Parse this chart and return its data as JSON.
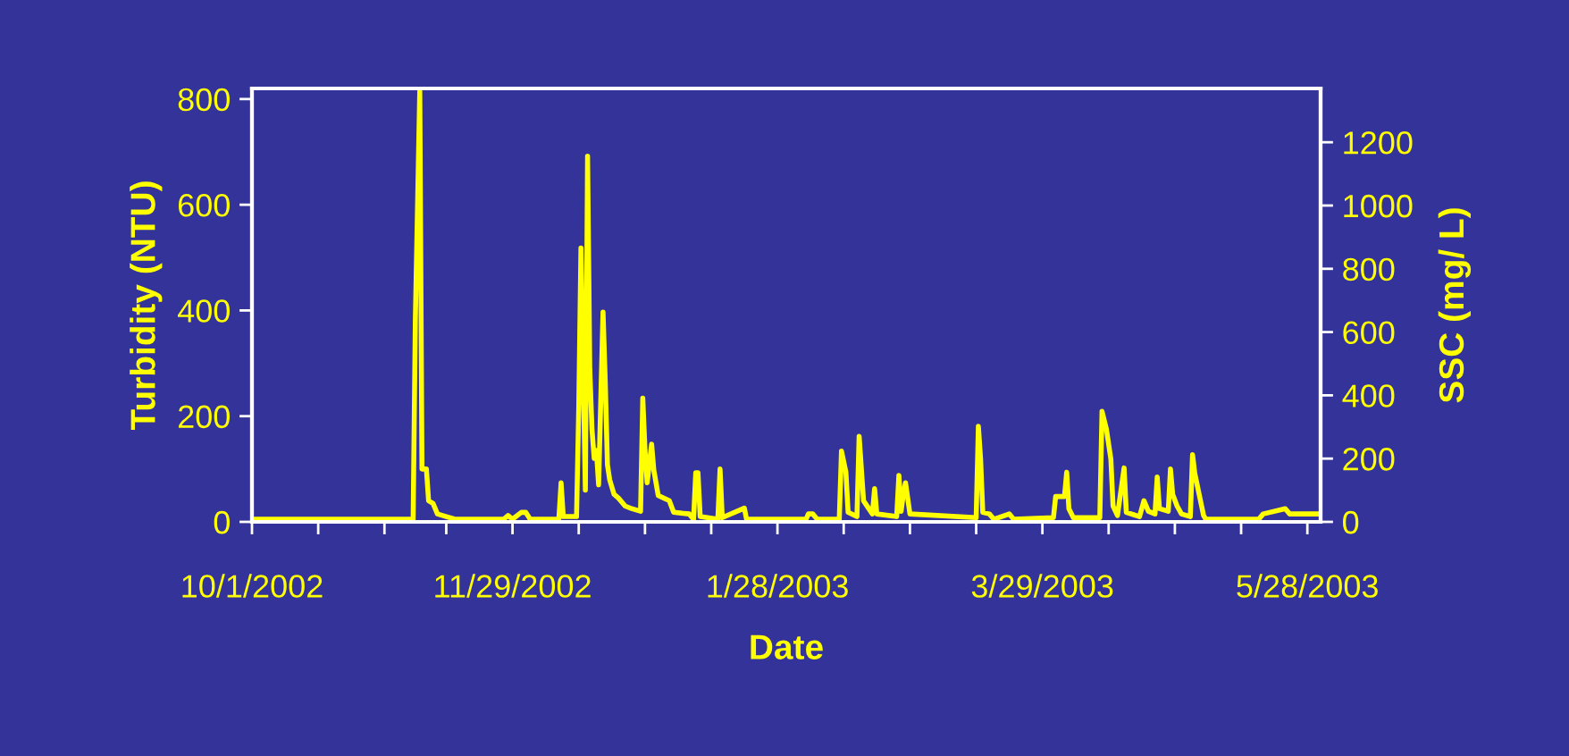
{
  "chart_data": {
    "type": "line",
    "xlabel": "Date",
    "ylabel": "Turbidity (NTU)",
    "y2label": "SSC (mg/ L)",
    "x": [
      "2002-10-01",
      "2002-11-06T12:00",
      "2002-11-07",
      "2002-11-08",
      "2002-11-08T12:00",
      "2002-11-09T12:00",
      "2002-11-10",
      "2002-11-11",
      "2002-11-12",
      "2002-11-14",
      "2002-11-16",
      "2002-11-27",
      "2002-11-28",
      "2002-11-29",
      "2002-12-01",
      "2002-12-02",
      "2002-12-03",
      "2002-12-09T12:00",
      "2002-12-10",
      "2002-12-10T12:00",
      "2002-12-13T12:00",
      "2002-12-14",
      "2002-12-14T12:00",
      "2002-12-15T12:00",
      "2002-12-16",
      "2002-12-16T12:00",
      "2002-12-17",
      "2002-12-17T12:00",
      "2002-12-18",
      "2002-12-18T12:00",
      "2002-12-19T12:00",
      "2002-12-20",
      "2002-12-20T12:00",
      "2002-12-21",
      "2002-12-22",
      "2002-12-23",
      "2002-12-24T12:00",
      "2002-12-26",
      "2002-12-28",
      "2002-12-28T12:00",
      "2002-12-29",
      "2002-12-29T12:00",
      "2002-12-30T12:00",
      "2002-12-31",
      "2003-01-01",
      "2003-01-03T12:00",
      "2003-01-04T12:00",
      "2003-01-08",
      "2003-01-09",
      "2003-01-09T12:00",
      "2003-01-10",
      "2003-01-10T12:00",
      "2003-01-14T12:00",
      "2003-01-15",
      "2003-01-15T12:00",
      "2003-01-20T12:00",
      "2003-01-21",
      "2003-02-03T12:00",
      "2003-02-04",
      "2003-02-05",
      "2003-02-06",
      "2003-02-11",
      "2003-02-11T12:00",
      "2003-02-12T12:00",
      "2003-02-13",
      "2003-02-15",
      "2003-02-15T12:00",
      "2003-02-16T12:00",
      "2003-02-18T12:00",
      "2003-02-19",
      "2003-02-19T12:00",
      "2003-02-24",
      "2003-02-24T12:00",
      "2003-02-25",
      "2003-02-25T12:00",
      "2003-02-26",
      "2003-02-27",
      "2003-03-14",
      "2003-03-14T12:00",
      "2003-03-15",
      "2003-03-15T12:00",
      "2003-03-17",
      "2003-03-18",
      "2003-03-21T12:00",
      "2003-03-22T12:00",
      "2003-03-31T12:00",
      "2003-04-01",
      "2003-04-03",
      "2003-04-03T12:00",
      "2003-04-04",
      "2003-04-05",
      "2003-04-11",
      "2003-04-11T12:00",
      "2003-04-12T12:00",
      "2003-04-13T12:00",
      "2003-04-14",
      "2003-04-15",
      "2003-04-16T12:00",
      "2003-04-17",
      "2003-04-20",
      "2003-04-21",
      "2003-04-22",
      "2003-04-23T12:00",
      "2003-04-24",
      "2003-04-24T12:00",
      "2003-04-26T12:00",
      "2003-04-27",
      "2003-04-27T12:00",
      "2003-04-28T12:00",
      "2003-04-29T12:00",
      "2003-05-01T12:00",
      "2003-05-02",
      "2003-05-02T12:00",
      "2003-05-03T12:00",
      "2003-05-04T12:00",
      "2003-05-05",
      "2003-05-17",
      "2003-05-18",
      "2003-05-23",
      "2003-05-24",
      "2003-05-31"
    ],
    "series": [
      {
        "color": "#ffff00",
        "values": [
          5,
          5,
          383,
          815,
          100,
          100,
          40,
          35,
          15,
          10,
          5,
          5,
          12,
          5,
          18,
          18,
          5,
          5,
          74,
          10,
          10,
          215,
          518,
          60,
          692,
          288,
          175,
          120,
          135,
          70,
          397,
          266,
          108,
          80,
          52,
          45,
          30,
          25,
          20,
          234,
          136,
          74,
          147,
          98,
          50,
          40,
          18,
          15,
          5,
          93,
          93,
          10,
          5,
          100,
          8,
          26,
          5,
          5,
          15,
          15,
          5,
          5,
          134,
          94,
          18,
          10,
          162,
          40,
          15,
          63,
          15,
          10,
          88,
          20,
          52,
          74,
          15,
          8,
          181,
          119,
          18,
          15,
          5,
          15,
          5,
          8,
          48,
          48,
          94,
          25,
          8,
          8,
          209,
          175,
          119,
          30,
          12,
          102,
          18,
          10,
          40,
          20,
          15,
          85,
          25,
          20,
          100,
          52,
          30,
          15,
          10,
          127,
          92,
          52,
          12,
          5,
          5,
          15,
          25,
          15,
          15
        ]
      }
    ],
    "xlim": [
      "2002-10-01",
      "2003-05-31"
    ],
    "xticks": [
      {
        "value": "2002-10-01",
        "label": "10/1/2002"
      },
      {
        "value": "2002-10-16",
        "label": null
      },
      {
        "value": "2002-10-31",
        "label": null
      },
      {
        "value": "2002-11-14",
        "label": null
      },
      {
        "value": "2002-11-29",
        "label": "11/29/2002"
      },
      {
        "value": "2002-12-14",
        "label": null
      },
      {
        "value": "2002-12-29",
        "label": null
      },
      {
        "value": "2003-01-13",
        "label": null
      },
      {
        "value": "2003-01-28",
        "label": "1/28/2003"
      },
      {
        "value": "2003-02-12",
        "label": null
      },
      {
        "value": "2003-02-27",
        "label": null
      },
      {
        "value": "2003-03-14",
        "label": null
      },
      {
        "value": "2003-03-29",
        "label": "3/29/2003"
      },
      {
        "value": "2003-04-13",
        "label": null
      },
      {
        "value": "2003-04-28",
        "label": null
      },
      {
        "value": "2003-05-13",
        "label": null
      },
      {
        "value": "2003-05-28",
        "label": "5/28/2003"
      }
    ],
    "ylim": [
      0,
      820
    ],
    "yticks": [
      0,
      200,
      400,
      600,
      800
    ],
    "y2lim": [
      0,
      1370
    ],
    "y2ticks": [
      0,
      200,
      400,
      600,
      800,
      1000,
      1200
    ]
  }
}
